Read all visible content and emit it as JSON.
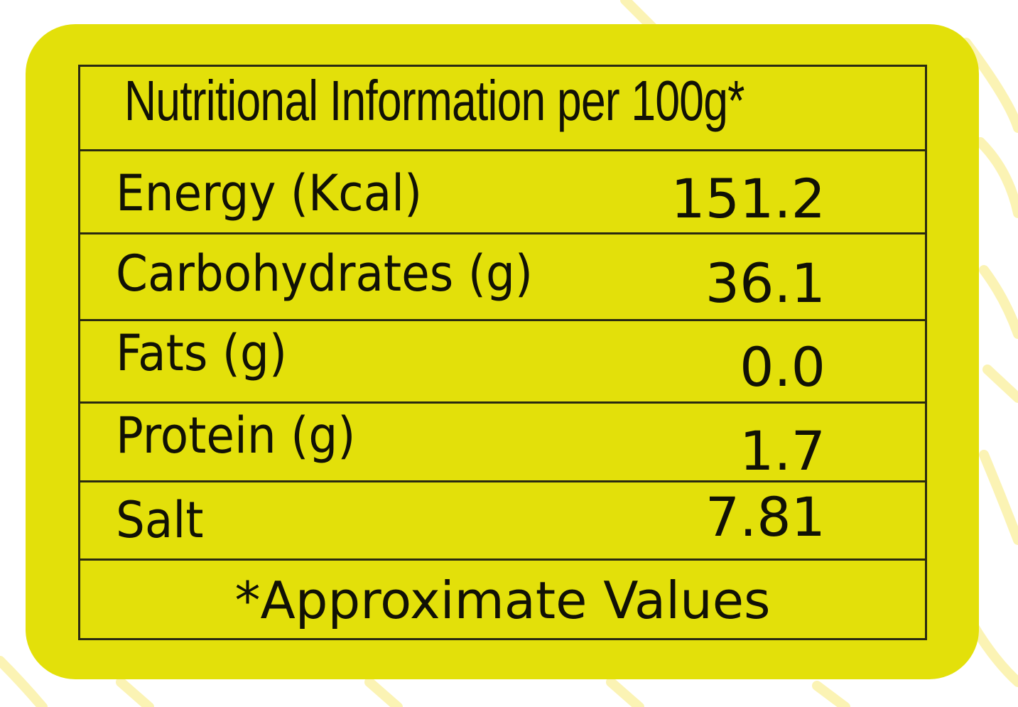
{
  "colors": {
    "panel": "#e3e00a",
    "border": "#2a2a10",
    "text": "#111105",
    "background": "#ffffff",
    "decor": "#fbf3b4"
  },
  "label": {
    "heading": "Nutritional Information per 100g*",
    "rows": [
      {
        "name": "Energy (Kcal)",
        "value": "151.2"
      },
      {
        "name": "Carbohydrates (g)",
        "value": "36.1"
      },
      {
        "name": "Fats (g)",
        "value": "0.0"
      },
      {
        "name": "Protein (g)",
        "value": "1.7"
      },
      {
        "name": "Salt",
        "value": "7.81"
      }
    ],
    "footnote": "*Approximate Values"
  }
}
